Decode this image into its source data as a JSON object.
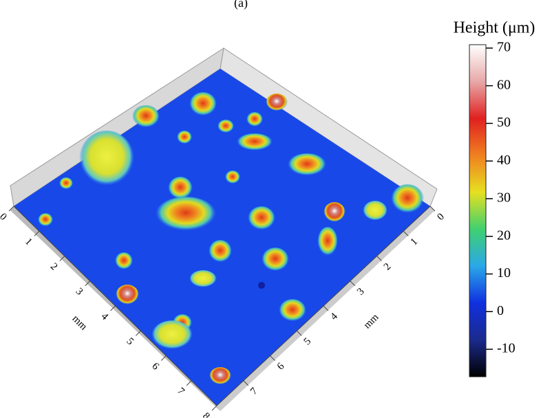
{
  "chart_data": {
    "type": "surface3d",
    "title": "(a)",
    "left_axis": {
      "label": "mm",
      "xlim": [
        0,
        8
      ],
      "xticks": [
        0,
        1,
        2,
        3,
        4,
        5,
        6,
        7,
        8
      ]
    },
    "right_axis": {
      "label": "mm",
      "xlim": [
        0,
        8
      ],
      "xticks": [
        0,
        1,
        2,
        3,
        4,
        5,
        6,
        7
      ]
    },
    "colorbar": {
      "label": "Height (μm)",
      "ylim": [
        -17.3,
        70.9
      ],
      "yticks": [
        70,
        60,
        50,
        40,
        30,
        20,
        10,
        0,
        -10
      ],
      "colors": [
        "#000000",
        "#1b2a8c",
        "#1030e0",
        "#2aa8e8",
        "#40d070",
        "#e6e020",
        "#f08020",
        "#e02020",
        "#e8a8a8",
        "#ffffff"
      ]
    }
  }
}
